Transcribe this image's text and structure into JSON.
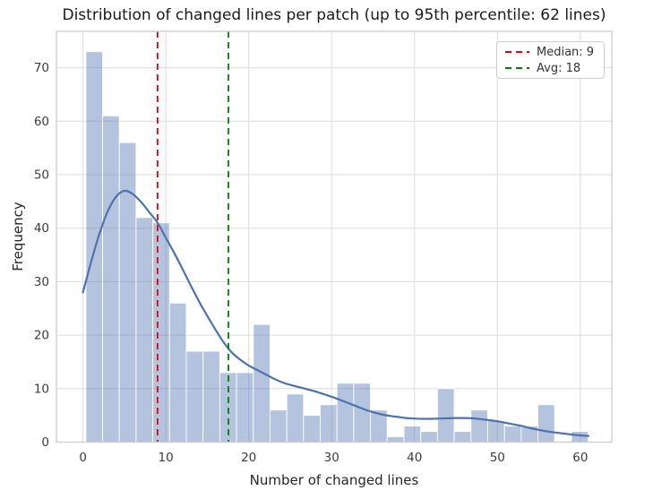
{
  "chart_data": {
    "type": "bar",
    "subtype": "histogram-with-kde",
    "title": "Distribution of changed lines per patch (up to 95th percentile: 62 lines)",
    "xlabel": "Number of changed lines",
    "ylabel": "Frequency",
    "x_ticks": [
      0,
      10,
      20,
      30,
      40,
      50,
      60
    ],
    "y_ticks": [
      0,
      10,
      20,
      30,
      40,
      50,
      60,
      70
    ],
    "xlim": [
      -3.2,
      63.8
    ],
    "ylim": [
      0,
      76.8
    ],
    "grid": true,
    "bin_start": 0.35,
    "bin_width": 2.02,
    "bar_values": [
      73,
      61,
      56,
      42,
      41,
      26,
      17,
      17,
      13,
      13,
      22,
      6,
      9,
      5,
      7,
      11,
      11,
      6,
      1,
      3,
      2,
      10,
      2,
      6,
      4,
      3,
      3,
      7,
      0,
      2
    ],
    "bar_color": "#4c72b0",
    "bar_fill_alpha": 0.42,
    "bar_edge_color": "#ffffff",
    "kde": {
      "name": "KDE",
      "color": "#4c72b0",
      "points": [
        [
          0,
          28
        ],
        [
          1,
          33.8
        ],
        [
          2,
          39
        ],
        [
          3,
          43.2
        ],
        [
          4,
          45.9
        ],
        [
          5,
          47
        ],
        [
          6,
          46.4
        ],
        [
          7,
          44.9
        ],
        [
          8,
          43
        ],
        [
          9,
          41
        ],
        [
          10,
          38.2
        ],
        [
          11,
          35.4
        ],
        [
          12,
          32.4
        ],
        [
          13,
          29.3
        ],
        [
          14,
          26.3
        ],
        [
          15,
          23.6
        ],
        [
          16,
          21
        ],
        [
          17,
          18.6
        ],
        [
          18,
          16.7
        ],
        [
          19,
          15.4
        ],
        [
          20,
          14.3
        ],
        [
          21,
          13.5
        ],
        [
          22,
          12.7
        ],
        [
          23,
          11.9
        ],
        [
          24,
          11.2
        ],
        [
          25,
          10.7
        ],
        [
          26,
          10.3
        ],
        [
          27,
          9.9
        ],
        [
          28,
          9.5
        ],
        [
          29,
          9.0
        ],
        [
          30,
          8.5
        ],
        [
          31,
          7.9
        ],
        [
          32,
          7.3
        ],
        [
          33,
          6.7
        ],
        [
          34,
          6.1
        ],
        [
          35,
          5.6
        ],
        [
          36,
          5.2
        ],
        [
          37,
          4.9
        ],
        [
          38,
          4.7
        ],
        [
          39,
          4.5
        ],
        [
          40,
          4.4
        ],
        [
          41,
          4.35
        ],
        [
          42,
          4.35
        ],
        [
          43,
          4.4
        ],
        [
          44,
          4.45
        ],
        [
          45,
          4.5
        ],
        [
          46,
          4.5
        ],
        [
          47,
          4.45
        ],
        [
          48,
          4.3
        ],
        [
          49,
          4.1
        ],
        [
          50,
          3.9
        ],
        [
          51,
          3.6
        ],
        [
          52,
          3.3
        ],
        [
          53,
          3.0
        ],
        [
          54,
          2.6
        ],
        [
          55,
          2.3
        ],
        [
          56,
          2.0
        ],
        [
          57,
          1.8
        ],
        [
          58,
          1.6
        ],
        [
          59,
          1.4
        ],
        [
          60,
          1.25
        ],
        [
          61,
          1.15
        ]
      ]
    },
    "median_line": {
      "label": "Median: 9",
      "x": 9,
      "color": "#e8000b"
    },
    "avg_line": {
      "label": "Avg: 18",
      "x": 17.55,
      "color": "#008000"
    },
    "legend_position": "upper right",
    "grid_color": "#dcdcdc",
    "spine_color": "#cbcbcb",
    "tick_color": "#3c3c3c"
  }
}
